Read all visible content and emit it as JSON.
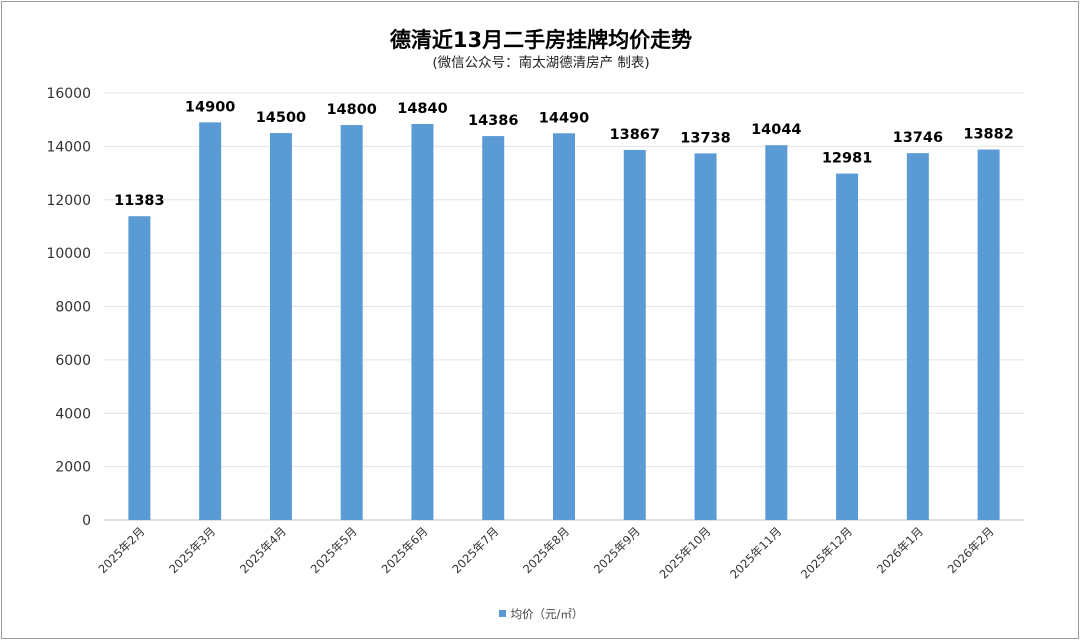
{
  "chart_data": {
    "type": "bar",
    "title": "德清近13月二手房挂牌均价走势",
    "subtitle": "(微信公众号：南太湖德清房产 制表)",
    "categories": [
      "2025年2月",
      "2025年3月",
      "2025年4月",
      "2025年5月",
      "2025年6月",
      "2025年7月",
      "2025年8月",
      "2025年9月",
      "2025年10月",
      "2025年11月",
      "2025年12月",
      "2026年1月",
      "2026年2月"
    ],
    "series": [
      {
        "name": "均价（元/㎡）",
        "values": [
          11383,
          14900,
          14500,
          14800,
          14840,
          14386,
          14490,
          13867,
          13738,
          14044,
          12981,
          13746,
          13882
        ],
        "color": "#5b9bd5"
      }
    ],
    "ylim": [
      0,
      16000
    ],
    "yticks": [
      0,
      2000,
      4000,
      6000,
      8000,
      10000,
      12000,
      14000,
      16000
    ],
    "grid": true,
    "data_labels": true,
    "legend_position": "bottom"
  }
}
